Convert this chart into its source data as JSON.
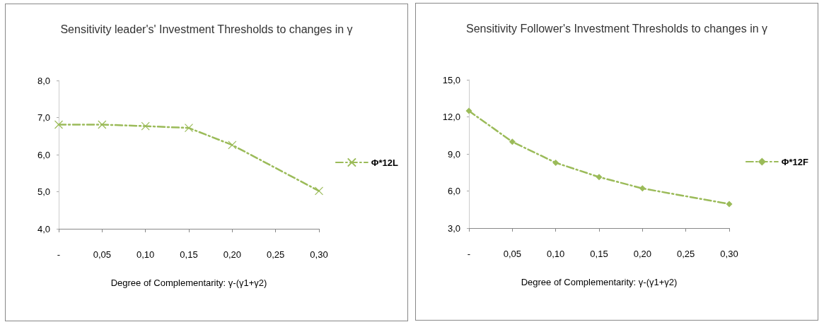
{
  "chart_data": [
    {
      "type": "line",
      "title": "Sensitivity leader's' Investment Thresholds to changes in γ",
      "xlabel": "Degree of Complementarity: γ-(γ1+γ2)",
      "x": [
        0,
        0.05,
        0.1,
        0.15,
        0.2,
        0.3
      ],
      "series": [
        {
          "name": "Φ*12L",
          "color": "#9bbb59",
          "marker": "cross",
          "values": [
            6.81,
            6.81,
            6.77,
            6.72,
            6.26,
            5.02
          ]
        }
      ],
      "xlim": [
        0,
        0.3
      ],
      "xticks": [
        {
          "value": 0,
          "label": "-"
        },
        {
          "value": 0.05,
          "label": "0,05"
        },
        {
          "value": 0.1,
          "label": "0,10"
        },
        {
          "value": 0.15,
          "label": "0,15"
        },
        {
          "value": 0.2,
          "label": "0,20"
        },
        {
          "value": 0.25,
          "label": "0,25"
        },
        {
          "value": 0.3,
          "label": "0,30"
        }
      ],
      "ylim": [
        4,
        8
      ],
      "yticks": [
        {
          "value": 4,
          "label": "4,0"
        },
        {
          "value": 5,
          "label": "5,0"
        },
        {
          "value": 6,
          "label": "6,0"
        },
        {
          "value": 7,
          "label": "7,0"
        },
        {
          "value": 8,
          "label": "8,0"
        }
      ],
      "grid": false,
      "legend": "right",
      "line_style": "dashed"
    },
    {
      "type": "line",
      "title": "Sensitivity Follower's Investment Thresholds to changes in γ",
      "xlabel": "Degree of Complementarity: γ-(γ1+γ2)",
      "x": [
        0,
        0.05,
        0.1,
        0.15,
        0.2,
        0.3
      ],
      "series": [
        {
          "name": "Φ*12F",
          "color": "#9bbb59",
          "marker": "diamond",
          "values": [
            12.48,
            9.98,
            8.29,
            7.13,
            6.21,
            4.95
          ]
        }
      ],
      "xlim": [
        0,
        0.3
      ],
      "xticks": [
        {
          "value": 0,
          "label": "-"
        },
        {
          "value": 0.05,
          "label": "0,05"
        },
        {
          "value": 0.1,
          "label": "0,10"
        },
        {
          "value": 0.15,
          "label": "0,15"
        },
        {
          "value": 0.2,
          "label": "0,20"
        },
        {
          "value": 0.25,
          "label": "0,25"
        },
        {
          "value": 0.3,
          "label": "0,30"
        }
      ],
      "ylim": [
        3,
        15
      ],
      "yticks": [
        {
          "value": 3,
          "label": "3,0"
        },
        {
          "value": 6,
          "label": "6,0"
        },
        {
          "value": 9,
          "label": "9,0"
        },
        {
          "value": 12,
          "label": "12,0"
        },
        {
          "value": 15,
          "label": "15,0"
        }
      ],
      "grid": false,
      "legend": "right",
      "line_style": "dashed"
    }
  ]
}
